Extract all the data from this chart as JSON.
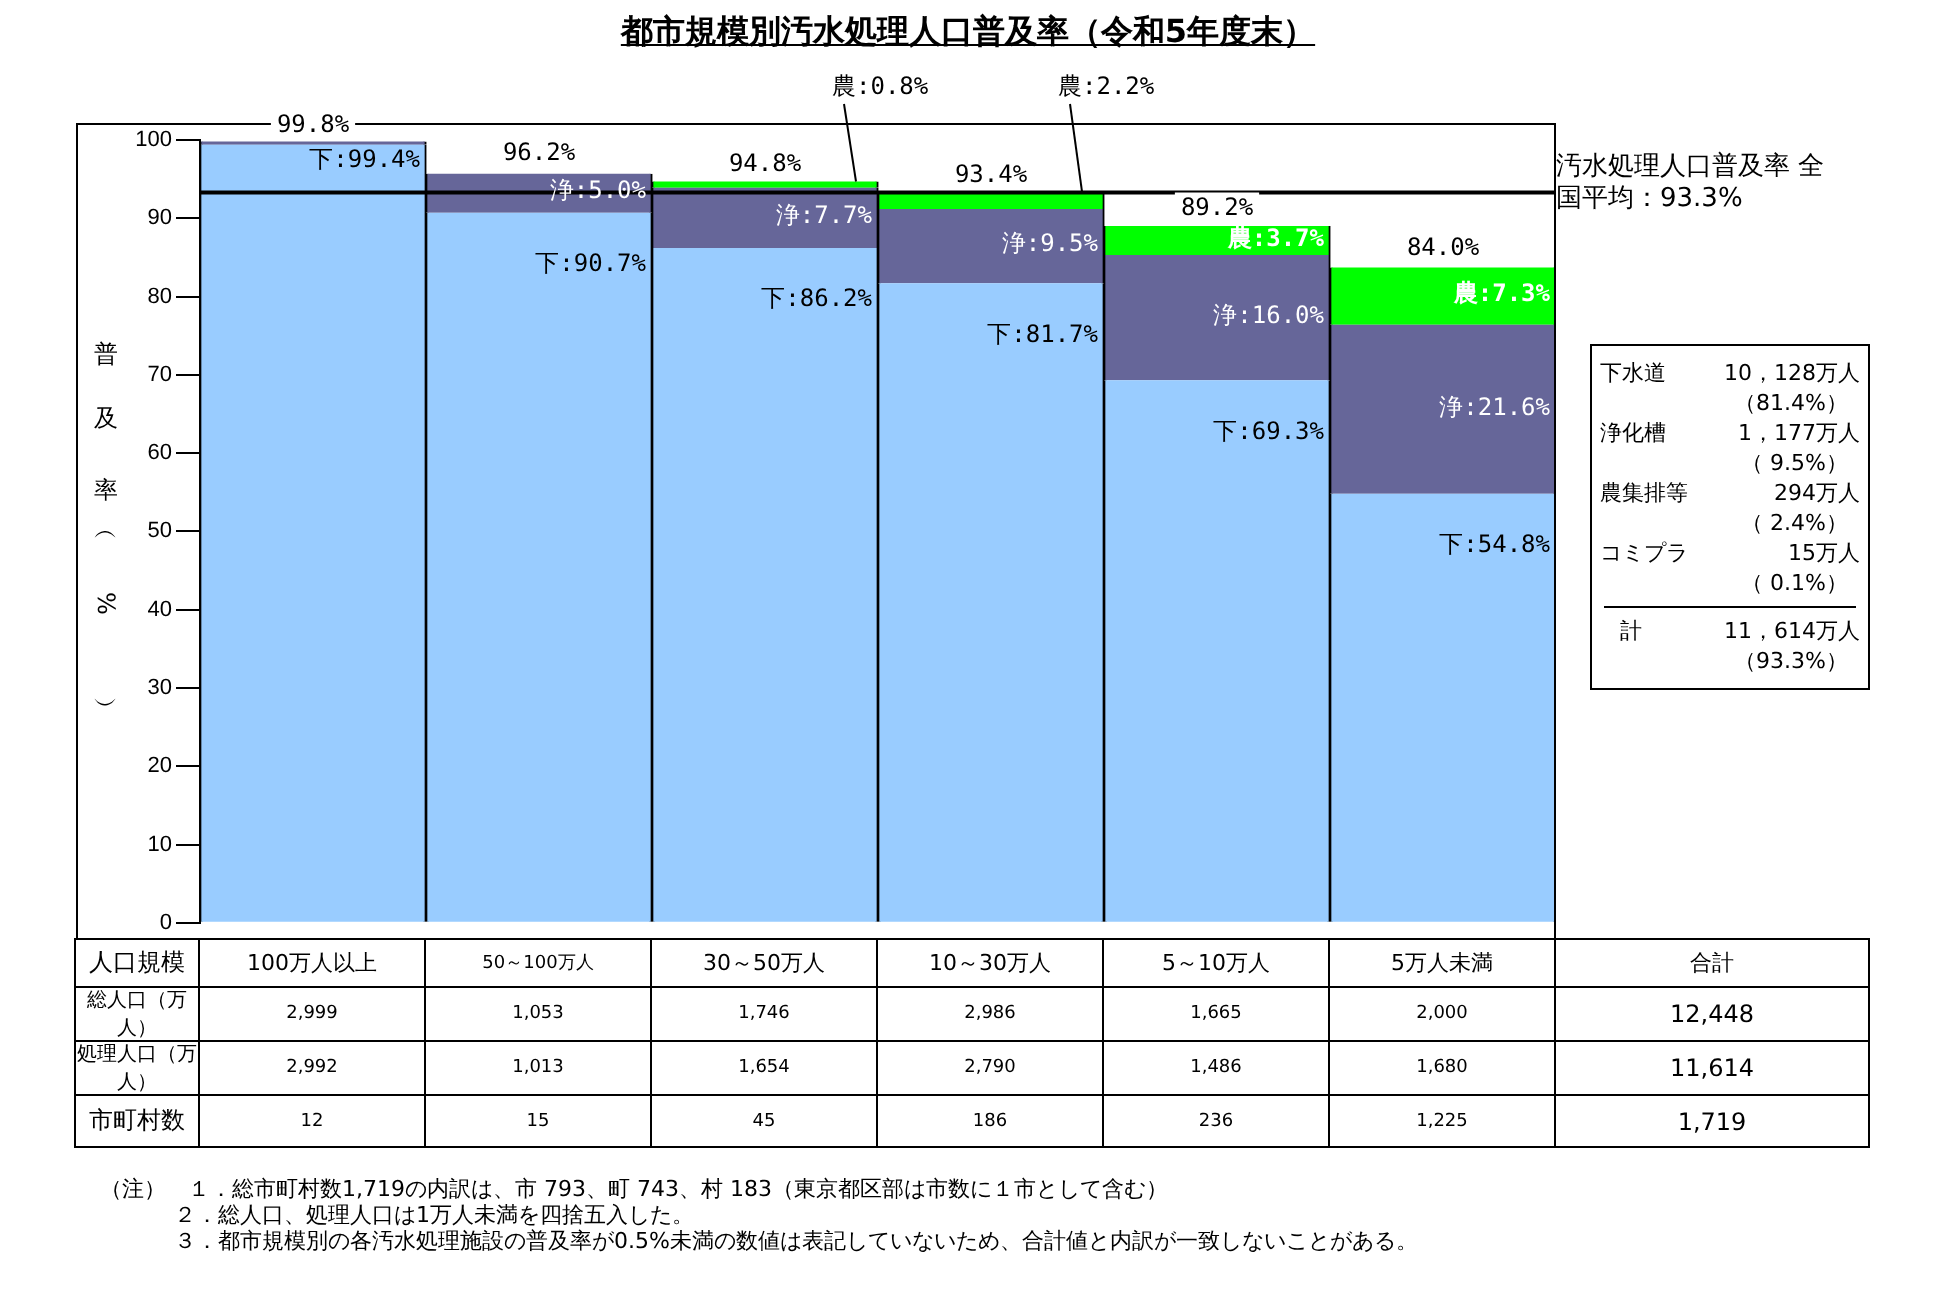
{
  "chart_data": {
    "type": "bar",
    "title": "都市規模別汚水処理人口普及率（令和5年度末）",
    "ylabel": "普及率（%）",
    "stacked": true,
    "legend": false,
    "grid": false,
    "tick_labels": "y",
    "categories": [
      "100万人以上",
      "50～100万人",
      "30～50万人",
      "10～30万人",
      "5～10万人",
      "5万人未満"
    ],
    "series": [
      {
        "color": "#99ccff",
        "values": [
          99.4,
          90.7,
          86.2,
          81.7,
          69.3,
          54.8
        ],
        "value_labels": [
          "下:99.4%",
          "下:90.7%",
          "下:86.2%",
          "下:81.7%",
          "下:69.3%",
          "下:54.8%"
        ]
      },
      {
        "color": "#666699",
        "values": [
          0.4,
          5.0,
          7.7,
          9.5,
          16.0,
          21.6
        ],
        "value_labels": [
          null,
          "浄:5.0%",
          "浄:7.7%",
          "浄:9.5%",
          "浄:16.0%",
          "浄:21.6%"
        ]
      },
      {
        "color": "#00ff00",
        "values": [
          null,
          null,
          0.8,
          2.2,
          3.7,
          7.3
        ],
        "value_labels": [
          null,
          null,
          "農:0.8%",
          "農:2.2%",
          "農:3.7%",
          "農:7.3%"
        ]
      }
    ],
    "ylim": [
      0,
      100
    ],
    "yticks": [
      0,
      10,
      20,
      30,
      40,
      50,
      60,
      70,
      80,
      90,
      100
    ],
    "ref_lines": [
      {
        "axis": "y",
        "value": 93.3,
        "label": "汚水処理人口普及率 全国平均：93.3%",
        "color": "#000000"
      }
    ],
    "annotations": [
      "下水道",
      "10，128万人",
      "（81.4%）",
      "浄化槽",
      "1，177万人",
      "（ 9.5%）",
      "農集排等",
      "294万人",
      "（ 2.4%）",
      "コミプラ",
      "15万人",
      "（ 0.1%）",
      "計",
      "11，614万人",
      "（93.3%）",
      "人口規模",
      "合計",
      "総人口（万人）",
      "2,999",
      "1,053",
      "1,746",
      "2,986",
      "1,665",
      "2,000",
      "12,448",
      "処理人口（万人）",
      "2,992",
      "1,013",
      "1,654",
      "2,790",
      "1,486",
      "1,680",
      "11,614",
      "市町村数",
      "12",
      "15",
      "45",
      "186",
      "236",
      "1,225",
      "1,719",
      "（注）　１．総市町村数1,719の内訳は、市 793、町 743、村 183（東京都区部は市数に１市として含む）",
      "２．総人口、処理人口は1万人未満を四捨五入した。",
      "３．都市規模別の各汚水処理施設の普及率が0.5%未満の数値は表記していないため、合計値と内訳が一致しないことがある。",
      {
        "text": "99.8%",
        "x": "100万人以上",
        "y": 99.8
      },
      {
        "text": "96.2%",
        "x": "50～100万人",
        "y": 96.2
      },
      {
        "text": "94.8%",
        "x": "30～50万人",
        "y": 94.8
      },
      {
        "text": "93.4%",
        "x": "10～30万人",
        "y": 93.4
      },
      {
        "text": "89.2%",
        "x": "5～10万人",
        "y": 89.2
      },
      {
        "text": "84.0%",
        "x": "5万人未満",
        "y": 84.0
      }
    ]
  }
}
